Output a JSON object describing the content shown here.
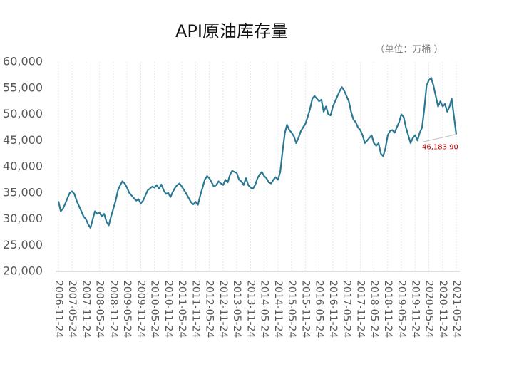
{
  "chart_data": {
    "type": "line",
    "title": "API原油库存量",
    "subtitle": "（单位：万桶 ）",
    "x": [
      "2006-11-24",
      "2006-12-24",
      "2007-01-24",
      "2007-02-24",
      "2007-03-24",
      "2007-04-24",
      "2007-05-24",
      "2007-06-24",
      "2007-07-24",
      "2007-08-24",
      "2007-09-24",
      "2007-10-24",
      "2007-11-24",
      "2007-12-24",
      "2008-01-24",
      "2008-02-24",
      "2008-03-24",
      "2008-04-24",
      "2008-05-24",
      "2008-06-24",
      "2008-07-24",
      "2008-08-24",
      "2008-09-24",
      "2008-10-24",
      "2008-11-24",
      "2008-12-24",
      "2009-01-24",
      "2009-02-24",
      "2009-03-24",
      "2009-04-24",
      "2009-05-24",
      "2009-06-24",
      "2009-07-24",
      "2009-08-24",
      "2009-09-24",
      "2009-10-24",
      "2009-11-24",
      "2009-12-24",
      "2010-01-24",
      "2010-02-24",
      "2010-03-24",
      "2010-04-24",
      "2010-05-24",
      "2010-06-24",
      "2010-07-24",
      "2010-08-24",
      "2010-09-24",
      "2010-10-24",
      "2010-11-24",
      "2010-12-24",
      "2011-01-24",
      "2011-02-24",
      "2011-03-24",
      "2011-04-24",
      "2011-05-24",
      "2011-06-24",
      "2011-07-24",
      "2011-08-24",
      "2011-09-24",
      "2011-10-24",
      "2011-11-24",
      "2011-12-24",
      "2012-01-24",
      "2012-02-24",
      "2012-03-24",
      "2012-04-24",
      "2012-05-24",
      "2012-06-24",
      "2012-07-24",
      "2012-08-24",
      "2012-09-24",
      "2012-10-24",
      "2012-11-24",
      "2012-12-24",
      "2013-01-24",
      "2013-02-24",
      "2013-03-24",
      "2013-04-24",
      "2013-05-24",
      "2013-06-24",
      "2013-07-24",
      "2013-08-24",
      "2013-09-24",
      "2013-10-24",
      "2013-11-24",
      "2013-12-24",
      "2014-01-24",
      "2014-02-24",
      "2014-03-24",
      "2014-04-24",
      "2014-05-24",
      "2014-06-24",
      "2014-07-24",
      "2014-08-24",
      "2014-09-24",
      "2014-10-24",
      "2014-11-24",
      "2014-12-24",
      "2015-01-24",
      "2015-02-24",
      "2015-03-24",
      "2015-04-24",
      "2015-05-24",
      "2015-06-24",
      "2015-07-24",
      "2015-08-24",
      "2015-09-24",
      "2015-10-24",
      "2015-11-24",
      "2015-12-24",
      "2016-01-24",
      "2016-02-24",
      "2016-03-24",
      "2016-04-24",
      "2016-05-24",
      "2016-06-24",
      "2016-07-24",
      "2016-08-24",
      "2016-09-24",
      "2016-10-24",
      "2016-11-24",
      "2016-12-24",
      "2017-01-24",
      "2017-02-24",
      "2017-03-24",
      "2017-04-24",
      "2017-05-24",
      "2017-06-24",
      "2017-07-24",
      "2017-08-24",
      "2017-09-24",
      "2017-10-24",
      "2017-11-24",
      "2017-12-24",
      "2018-01-24",
      "2018-02-24",
      "2018-03-24",
      "2018-04-24",
      "2018-05-24",
      "2018-06-24",
      "2018-07-24",
      "2018-08-24",
      "2018-09-24",
      "2018-10-24",
      "2018-11-24",
      "2018-12-24",
      "2019-01-24",
      "2019-02-24",
      "2019-03-24",
      "2019-04-24",
      "2019-05-24",
      "2019-06-24",
      "2019-07-24",
      "2019-08-24",
      "2019-09-24",
      "2019-10-24",
      "2019-11-24",
      "2019-12-24",
      "2020-01-24",
      "2020-02-24",
      "2020-03-24",
      "2020-04-24",
      "2020-05-24",
      "2020-06-24",
      "2020-07-24",
      "2020-08-24",
      "2020-09-24",
      "2020-10-24",
      "2020-11-24",
      "2020-12-24",
      "2021-01-24",
      "2021-02-24",
      "2021-03-24",
      "2021-04-24",
      "2021-05-24"
    ],
    "series": [
      {
        "name": "API原油库存量",
        "color": "#2b7893",
        "values": [
          33400,
          31500,
          32000,
          33000,
          34000,
          35000,
          35300,
          34800,
          33500,
          32500,
          31500,
          30500,
          30000,
          29000,
          28300,
          30000,
          31500,
          31000,
          31200,
          30500,
          31000,
          29500,
          28800,
          30500,
          32000,
          33500,
          35500,
          36500,
          37200,
          36800,
          36000,
          35000,
          34500,
          34000,
          33500,
          33800,
          33000,
          33500,
          34500,
          35500,
          35800,
          36200,
          36000,
          36500,
          35800,
          36600,
          35500,
          34800,
          35000,
          34200,
          35200,
          36000,
          36500,
          36800,
          36200,
          35500,
          34800,
          34000,
          33200,
          32800,
          33300,
          32700,
          34500,
          36000,
          37500,
          38200,
          37800,
          37000,
          36200,
          36500,
          37200,
          36800,
          36500,
          37500,
          37000,
          38500,
          39200,
          39000,
          38800,
          37500,
          37200,
          36500,
          37800,
          36500,
          36000,
          35800,
          36500,
          37800,
          38500,
          39000,
          38200,
          37800,
          37000,
          36800,
          37500,
          38000,
          37500,
          39000,
          43000,
          46500,
          48000,
          47000,
          46500,
          45800,
          44500,
          45500,
          46800,
          47500,
          48200,
          49500,
          51000,
          53000,
          53500,
          53000,
          52500,
          52800,
          50500,
          51500,
          50000,
          49800,
          51500,
          52500,
          53500,
          54500,
          55200,
          54500,
          53500,
          52500,
          50500,
          49000,
          48500,
          47500,
          47000,
          46000,
          44500,
          45000,
          45500,
          46000,
          44500,
          44000,
          44500,
          42500,
          42000,
          43500,
          46000,
          46800,
          47000,
          46500,
          47500,
          48500,
          50000,
          49500,
          47500,
          46000,
          44500,
          45500,
          46000,
          45000,
          46500,
          47500,
          51000,
          55500,
          56500,
          57000,
          55500,
          53500,
          51500,
          52500,
          51500,
          52000,
          50500,
          51500,
          53000,
          49500,
          46183.9
        ],
        "value_labels": [
          null,
          null,
          null,
          null,
          null,
          null,
          null,
          null,
          null,
          null,
          null,
          null,
          null,
          null,
          null,
          null,
          null,
          null,
          null,
          null,
          null,
          null,
          null,
          null,
          null,
          null,
          null,
          null,
          null,
          null,
          null,
          null,
          null,
          null,
          null,
          null,
          null,
          null,
          null,
          null,
          null,
          null,
          null,
          null,
          null,
          null,
          null,
          null,
          null,
          null,
          null,
          null,
          null,
          null,
          null,
          null,
          null,
          null,
          null,
          null,
          null,
          null,
          null,
          null,
          null,
          null,
          null,
          null,
          null,
          null,
          null,
          null,
          null,
          null,
          null,
          null,
          null,
          null,
          null,
          null,
          null,
          null,
          null,
          null,
          null,
          null,
          null,
          null,
          null,
          null,
          null,
          null,
          null,
          null,
          null,
          null,
          null,
          null,
          null,
          null,
          null,
          null,
          null,
          null,
          null,
          null,
          null,
          null,
          null,
          null,
          null,
          null,
          null,
          null,
          null,
          null,
          null,
          null,
          null,
          null,
          null,
          null,
          null,
          null,
          null,
          null,
          null,
          null,
          null,
          null,
          null,
          null,
          null,
          null,
          null,
          null,
          null,
          null,
          null,
          null,
          null,
          null,
          null,
          null,
          null,
          null,
          null,
          null,
          null,
          null,
          null,
          null,
          null,
          null,
          null,
          null,
          null,
          null,
          null,
          null,
          null,
          null,
          null,
          null,
          null,
          null,
          null,
          null,
          null,
          null,
          null,
          null,
          null,
          null,
          "46,183.90"
        ]
      }
    ],
    "xlim": [
      "2006-11-24",
      "2021-05-24"
    ],
    "xticks": [
      "2006-11-24",
      "2007-05-24",
      "2007-11-24",
      "2008-05-24",
      "2008-11-24",
      "2009-05-24",
      "2009-11-24",
      "2010-05-24",
      "2010-11-24",
      "2011-05-24",
      "2011-11-24",
      "2012-05-24",
      "2012-11-24",
      "2013-05-24",
      "2013-11-24",
      "2014-05-24",
      "2014-11-24",
      "2015-05-24",
      "2015-11-24",
      "2016-05-24",
      "2016-11-24",
      "2017-05-24",
      "2017-11-24",
      "2018-05-24",
      "2018-11-24",
      "2019-05-24",
      "2019-11-24",
      "2020-05-24",
      "2020-11-24",
      "2021-05-24"
    ],
    "ylim": [
      20000,
      60000
    ],
    "yticks": [
      {
        "value": 20000,
        "label": "20,000"
      },
      {
        "value": 25000,
        "label": "25,000"
      },
      {
        "value": 30000,
        "label": "30,000"
      },
      {
        "value": 35000,
        "label": "35,000"
      },
      {
        "value": 40000,
        "label": "40,000"
      },
      {
        "value": 45000,
        "label": "45,000"
      },
      {
        "value": 50000,
        "label": "50,000"
      },
      {
        "value": 55000,
        "label": "55,000"
      },
      {
        "value": 60000,
        "label": "60,000"
      }
    ],
    "grid": "x",
    "label_color": "#c00000"
  }
}
